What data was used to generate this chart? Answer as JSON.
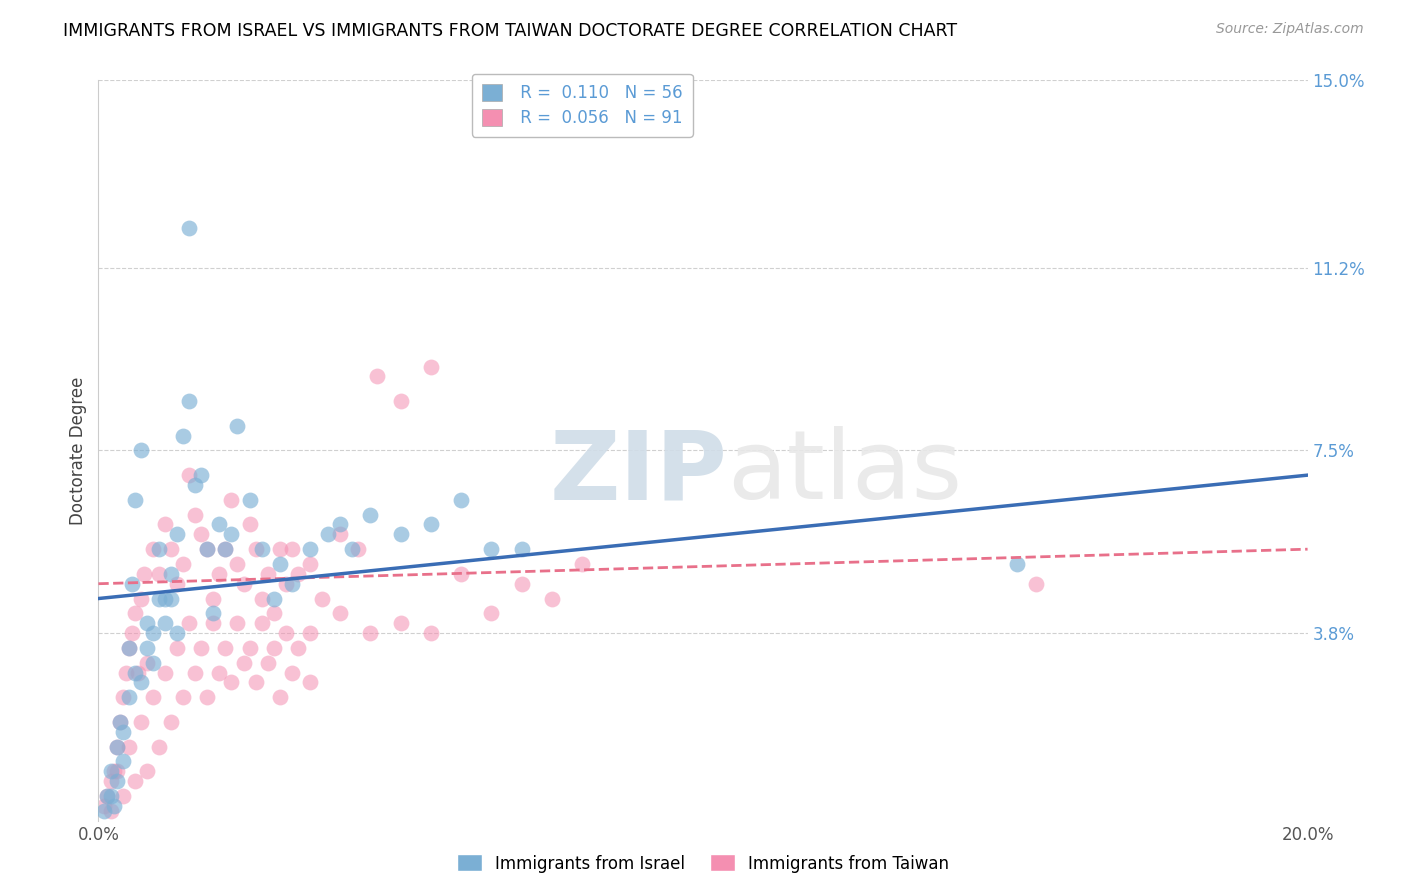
{
  "title": "IMMIGRANTS FROM ISRAEL VS IMMIGRANTS FROM TAIWAN DOCTORATE DEGREE CORRELATION CHART",
  "source": "Source: ZipAtlas.com",
  "ylabel": "Doctorate Degree",
  "xlim": [
    0.0,
    20.0
  ],
  "ylim": [
    0.0,
    15.0
  ],
  "ytick_vals_right": [
    3.8,
    7.5,
    11.2,
    15.0
  ],
  "legend_R1": "0.110",
  "legend_N1": "56",
  "legend_R2": "0.056",
  "legend_N2": "91",
  "color_israel": "#7BAFD4",
  "color_taiwan": "#F48FB1",
  "color_line_israel": "#3A6DB5",
  "color_line_taiwan": "#E8708A",
  "watermark": "ZIPatlas",
  "israel_line_x0": 0.0,
  "israel_line_y0": 4.5,
  "israel_line_x1": 20.0,
  "israel_line_y1": 7.0,
  "taiwan_line_x0": 0.0,
  "taiwan_line_y0": 4.8,
  "taiwan_line_x1": 20.0,
  "taiwan_line_y1": 5.5,
  "israel_x": [
    0.15,
    0.2,
    0.25,
    0.3,
    0.35,
    0.4,
    0.5,
    0.55,
    0.6,
    0.7,
    0.8,
    0.9,
    1.0,
    1.1,
    1.2,
    1.3,
    1.4,
    1.5,
    1.6,
    1.7,
    1.8,
    1.9,
    2.0,
    2.1,
    2.2,
    2.3,
    2.5,
    2.7,
    2.9,
    3.0,
    3.2,
    3.5,
    3.8,
    4.0,
    4.2,
    4.5,
    5.0,
    5.5,
    6.0,
    6.5,
    7.0,
    0.1,
    0.2,
    0.3,
    0.4,
    0.5,
    0.6,
    0.7,
    0.8,
    0.9,
    1.0,
    1.1,
    1.2,
    1.3,
    1.5,
    15.2
  ],
  "israel_y": [
    0.5,
    1.0,
    0.3,
    1.5,
    2.0,
    1.8,
    3.5,
    4.8,
    6.5,
    7.5,
    4.0,
    3.2,
    5.5,
    4.5,
    5.0,
    5.8,
    7.8,
    8.5,
    6.8,
    7.0,
    5.5,
    4.2,
    6.0,
    5.5,
    5.8,
    8.0,
    6.5,
    5.5,
    4.5,
    5.2,
    4.8,
    5.5,
    5.8,
    6.0,
    5.5,
    6.2,
    5.8,
    6.0,
    6.5,
    5.5,
    5.5,
    0.2,
    0.5,
    0.8,
    1.2,
    2.5,
    3.0,
    2.8,
    3.5,
    3.8,
    4.5,
    4.0,
    4.5,
    3.8,
    12.0,
    5.2
  ],
  "taiwan_x": [
    0.1,
    0.15,
    0.2,
    0.25,
    0.3,
    0.35,
    0.4,
    0.45,
    0.5,
    0.55,
    0.6,
    0.65,
    0.7,
    0.75,
    0.8,
    0.9,
    1.0,
    1.1,
    1.2,
    1.3,
    1.4,
    1.5,
    1.6,
    1.7,
    1.8,
    1.9,
    2.0,
    2.1,
    2.2,
    2.3,
    2.4,
    2.5,
    2.6,
    2.7,
    2.8,
    2.9,
    3.0,
    3.1,
    3.2,
    3.3,
    3.5,
    3.7,
    4.0,
    4.3,
    4.6,
    5.0,
    5.5,
    6.0,
    7.0,
    8.0,
    0.3,
    0.5,
    0.7,
    0.9,
    1.1,
    1.3,
    1.5,
    1.7,
    1.9,
    2.1,
    2.3,
    2.5,
    2.7,
    2.9,
    3.1,
    3.3,
    3.5,
    4.0,
    4.5,
    5.0,
    5.5,
    6.5,
    7.5,
    0.2,
    0.4,
    0.6,
    0.8,
    1.0,
    1.2,
    1.4,
    1.6,
    1.8,
    2.0,
    2.2,
    2.4,
    2.6,
    2.8,
    3.0,
    3.2,
    3.5,
    15.5
  ],
  "taiwan_y": [
    0.3,
    0.5,
    0.8,
    1.0,
    1.5,
    2.0,
    2.5,
    3.0,
    3.5,
    3.8,
    4.2,
    3.0,
    4.5,
    5.0,
    3.2,
    5.5,
    5.0,
    6.0,
    5.5,
    4.8,
    5.2,
    7.0,
    6.2,
    5.8,
    5.5,
    4.5,
    5.0,
    5.5,
    6.5,
    5.2,
    4.8,
    6.0,
    5.5,
    4.5,
    5.0,
    4.2,
    5.5,
    4.8,
    5.5,
    5.0,
    5.2,
    4.5,
    5.8,
    5.5,
    9.0,
    8.5,
    9.2,
    5.0,
    4.8,
    5.2,
    1.0,
    1.5,
    2.0,
    2.5,
    3.0,
    3.5,
    4.0,
    3.5,
    4.0,
    3.5,
    4.0,
    3.5,
    4.0,
    3.5,
    3.8,
    3.5,
    3.8,
    4.2,
    3.8,
    4.0,
    3.8,
    4.2,
    4.5,
    0.2,
    0.5,
    0.8,
    1.0,
    1.5,
    2.0,
    2.5,
    3.0,
    2.5,
    3.0,
    2.8,
    3.2,
    2.8,
    3.2,
    2.5,
    3.0,
    2.8,
    4.8
  ]
}
